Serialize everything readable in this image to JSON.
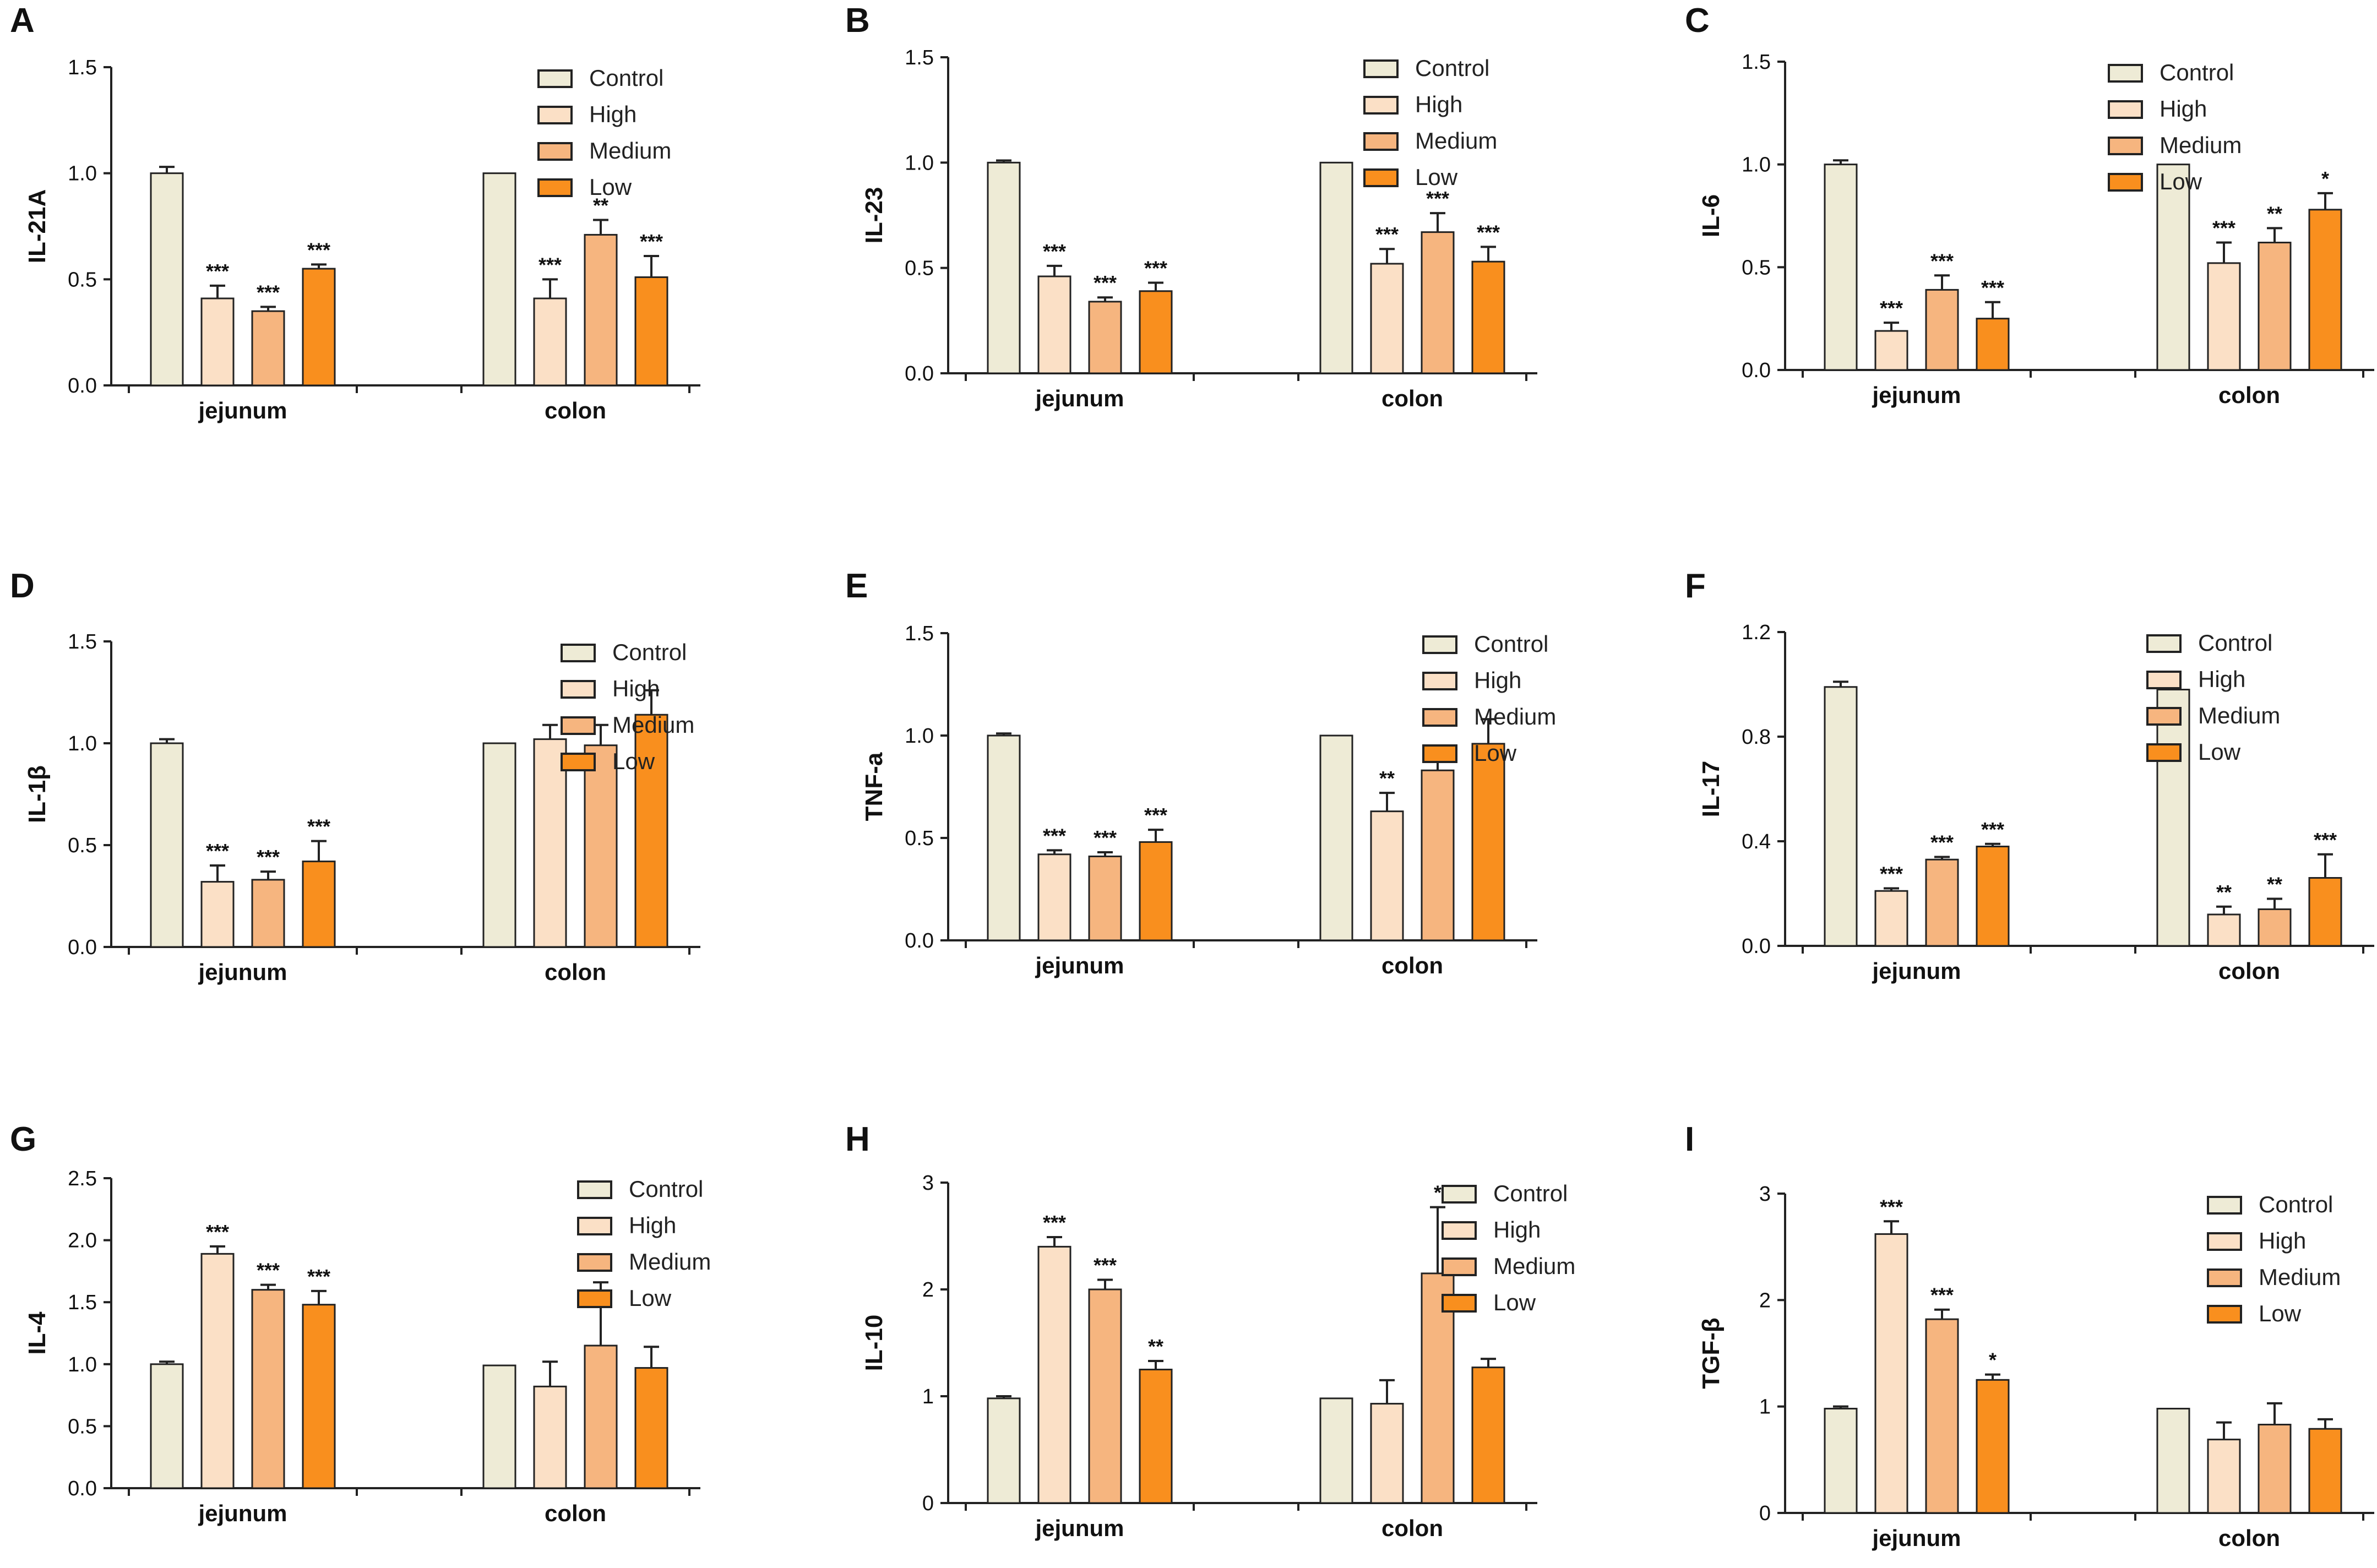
{
  "figure": {
    "legend_labels": [
      "Control",
      "High",
      "Medium",
      "Low"
    ],
    "group_colors": [
      "#eeebd6",
      "#fbe0c6",
      "#f6b57f",
      "#f98f1e"
    ],
    "outline_color": "#222222"
  },
  "chart_data": [
    {
      "panel": "A",
      "type": "bar",
      "ylabel": "IL-21A",
      "categories": [
        "jejunum",
        "colon"
      ],
      "ylim": [
        0,
        1.5
      ],
      "yticks": [
        "0.0",
        "0.5",
        "1.0",
        "1.5"
      ],
      "yticks_values": [
        0,
        0.5,
        1.0,
        1.5
      ],
      "series": [
        {
          "name": "Control",
          "values": [
            1.0,
            1.0
          ],
          "errors": [
            0.03,
            0
          ],
          "sig": [
            "",
            ""
          ]
        },
        {
          "name": "High",
          "values": [
            0.41,
            0.41
          ],
          "errors": [
            0.06,
            0.09
          ],
          "sig": [
            "***",
            "***"
          ]
        },
        {
          "name": "Medium",
          "values": [
            0.35,
            0.71
          ],
          "errors": [
            0.02,
            0.07
          ],
          "sig": [
            "***",
            "**"
          ]
        },
        {
          "name": "Low",
          "values": [
            0.55,
            0.51
          ],
          "errors": [
            0.02,
            0.1
          ],
          "sig": [
            "***",
            "***"
          ]
        }
      ]
    },
    {
      "panel": "B",
      "type": "bar",
      "ylabel": "IL-23",
      "categories": [
        "jejunum",
        "colon"
      ],
      "ylim": [
        0,
        1.5
      ],
      "yticks": [
        "0.0",
        "0.5",
        "1.0",
        "1.5"
      ],
      "yticks_values": [
        0,
        0.5,
        1.0,
        1.5
      ],
      "series": [
        {
          "name": "Control",
          "values": [
            1.0,
            1.0
          ],
          "errors": [
            0.01,
            0
          ],
          "sig": [
            "",
            ""
          ]
        },
        {
          "name": "High",
          "values": [
            0.46,
            0.52
          ],
          "errors": [
            0.05,
            0.07
          ],
          "sig": [
            "***",
            "***"
          ]
        },
        {
          "name": "Medium",
          "values": [
            0.34,
            0.67
          ],
          "errors": [
            0.02,
            0.09
          ],
          "sig": [
            "***",
            "***"
          ]
        },
        {
          "name": "Low",
          "values": [
            0.39,
            0.53
          ],
          "errors": [
            0.04,
            0.07
          ],
          "sig": [
            "***",
            "***"
          ]
        }
      ]
    },
    {
      "panel": "C",
      "type": "bar",
      "ylabel": "IL-6",
      "categories": [
        "jejunum",
        "colon"
      ],
      "ylim": [
        0,
        1.5
      ],
      "yticks": [
        "0.0",
        "0.5",
        "1.0",
        "1.5"
      ],
      "yticks_values": [
        0,
        0.5,
        1.0,
        1.5
      ],
      "series": [
        {
          "name": "Control",
          "values": [
            1.0,
            1.0
          ],
          "errors": [
            0.02,
            0
          ],
          "sig": [
            "",
            ""
          ]
        },
        {
          "name": "High",
          "values": [
            0.19,
            0.52
          ],
          "errors": [
            0.04,
            0.1
          ],
          "sig": [
            "***",
            "***"
          ]
        },
        {
          "name": "Medium",
          "values": [
            0.39,
            0.62
          ],
          "errors": [
            0.07,
            0.07
          ],
          "sig": [
            "***",
            "**"
          ]
        },
        {
          "name": "Low",
          "values": [
            0.25,
            0.78
          ],
          "errors": [
            0.08,
            0.08
          ],
          "sig": [
            "***",
            "*"
          ]
        }
      ]
    },
    {
      "panel": "D",
      "type": "bar",
      "ylabel": "IL-1β",
      "categories": [
        "jejunum",
        "colon"
      ],
      "ylim": [
        0,
        1.5
      ],
      "yticks": [
        "0.0",
        "0.5",
        "1.0",
        "1.5"
      ],
      "yticks_values": [
        0,
        0.5,
        1.0,
        1.5
      ],
      "series": [
        {
          "name": "Control",
          "values": [
            1.0,
            1.0
          ],
          "errors": [
            0.02,
            0
          ],
          "sig": [
            "",
            ""
          ]
        },
        {
          "name": "High",
          "values": [
            0.32,
            1.02
          ],
          "errors": [
            0.08,
            0.07
          ],
          "sig": [
            "***",
            ""
          ]
        },
        {
          "name": "Medium",
          "values": [
            0.33,
            0.99
          ],
          "errors": [
            0.04,
            0.1
          ],
          "sig": [
            "***",
            ""
          ]
        },
        {
          "name": "Low",
          "values": [
            0.42,
            1.14
          ],
          "errors": [
            0.1,
            0.12
          ],
          "sig": [
            "***",
            ""
          ]
        }
      ]
    },
    {
      "panel": "E",
      "type": "bar",
      "ylabel": "TNF-a",
      "categories": [
        "jejunum",
        "colon"
      ],
      "ylim": [
        0,
        1.5
      ],
      "yticks": [
        "0.0",
        "0.5",
        "1.0",
        "1.5"
      ],
      "yticks_values": [
        0,
        0.5,
        1.0,
        1.5
      ],
      "series": [
        {
          "name": "Control",
          "values": [
            1.0,
            1.0
          ],
          "errors": [
            0.01,
            0
          ],
          "sig": [
            "",
            ""
          ]
        },
        {
          "name": "High",
          "values": [
            0.42,
            0.63
          ],
          "errors": [
            0.02,
            0.09
          ],
          "sig": [
            "***",
            "**"
          ]
        },
        {
          "name": "Medium",
          "values": [
            0.41,
            0.83
          ],
          "errors": [
            0.02,
            0.07
          ],
          "sig": [
            "***",
            ""
          ]
        },
        {
          "name": "Low",
          "values": [
            0.48,
            0.96
          ],
          "errors": [
            0.06,
            0.12
          ],
          "sig": [
            "***",
            ""
          ]
        }
      ]
    },
    {
      "panel": "F",
      "type": "bar",
      "ylabel": "IL-17",
      "categories": [
        "jejunum",
        "colon"
      ],
      "ylim": [
        0,
        1.2
      ],
      "yticks": [
        "0.0",
        "0.4",
        "0.8",
        "1.2"
      ],
      "yticks_values": [
        0,
        0.4,
        0.8,
        1.2
      ],
      "series": [
        {
          "name": "Control",
          "values": [
            0.99,
            0.98
          ],
          "errors": [
            0.02,
            0.01
          ],
          "sig": [
            "",
            ""
          ]
        },
        {
          "name": "High",
          "values": [
            0.21,
            0.12
          ],
          "errors": [
            0.01,
            0.03
          ],
          "sig": [
            "***",
            "**"
          ]
        },
        {
          "name": "Medium",
          "values": [
            0.33,
            0.14
          ],
          "errors": [
            0.01,
            0.04
          ],
          "sig": [
            "***",
            "**"
          ]
        },
        {
          "name": "Low",
          "values": [
            0.38,
            0.26
          ],
          "errors": [
            0.01,
            0.09
          ],
          "sig": [
            "***",
            "***"
          ]
        }
      ]
    },
    {
      "panel": "G",
      "type": "bar",
      "ylabel": "IL-4",
      "categories": [
        "jejunum",
        "colon"
      ],
      "ylim": [
        0,
        2.5
      ],
      "yticks": [
        "0.0",
        "0.5",
        "1.0",
        "1.5",
        "2.0",
        "2.5"
      ],
      "yticks_values": [
        0,
        0.5,
        1.0,
        1.5,
        2.0,
        2.5
      ],
      "series": [
        {
          "name": "Control",
          "values": [
            1.0,
            0.99
          ],
          "errors": [
            0.02,
            0
          ],
          "sig": [
            "",
            ""
          ]
        },
        {
          "name": "High",
          "values": [
            1.89,
            0.82
          ],
          "errors": [
            0.06,
            0.2
          ],
          "sig": [
            "***",
            ""
          ]
        },
        {
          "name": "Medium",
          "values": [
            1.6,
            1.15
          ],
          "errors": [
            0.04,
            0.51
          ],
          "sig": [
            "***",
            ""
          ]
        },
        {
          "name": "Low",
          "values": [
            1.48,
            0.97
          ],
          "errors": [
            0.11,
            0.17
          ],
          "sig": [
            "***",
            ""
          ]
        }
      ]
    },
    {
      "panel": "H",
      "type": "bar",
      "ylabel": "IL-10",
      "categories": [
        "jejunum",
        "colon"
      ],
      "ylim": [
        0,
        3
      ],
      "yticks": [
        "0",
        "1",
        "2",
        "3"
      ],
      "yticks_values": [
        0,
        1,
        2,
        3
      ],
      "series": [
        {
          "name": "Control",
          "values": [
            0.98,
            0.98
          ],
          "errors": [
            0.02,
            0
          ],
          "sig": [
            "",
            ""
          ]
        },
        {
          "name": "High",
          "values": [
            2.4,
            0.93
          ],
          "errors": [
            0.09,
            0.22
          ],
          "sig": [
            "***",
            ""
          ]
        },
        {
          "name": "Medium",
          "values": [
            2.0,
            2.15
          ],
          "errors": [
            0.09,
            0.62
          ],
          "sig": [
            "***",
            "*"
          ]
        },
        {
          "name": "Low",
          "values": [
            1.25,
            1.27
          ],
          "errors": [
            0.08,
            0.08
          ],
          "sig": [
            "**",
            ""
          ]
        }
      ]
    },
    {
      "panel": "I",
      "type": "bar",
      "ylabel": "TGF-β",
      "categories": [
        "jejunum",
        "colon"
      ],
      "ylim": [
        0,
        3
      ],
      "yticks": [
        "0",
        "1",
        "2",
        "3"
      ],
      "yticks_values": [
        0,
        1,
        2,
        3
      ],
      "series": [
        {
          "name": "Control",
          "values": [
            0.98,
            0.98
          ],
          "errors": [
            0.02,
            0
          ],
          "sig": [
            "",
            ""
          ]
        },
        {
          "name": "High",
          "values": [
            2.62,
            0.69
          ],
          "errors": [
            0.12,
            0.16
          ],
          "sig": [
            "***",
            ""
          ]
        },
        {
          "name": "Medium",
          "values": [
            1.82,
            0.83
          ],
          "errors": [
            0.09,
            0.2
          ],
          "sig": [
            "***",
            ""
          ]
        },
        {
          "name": "Low",
          "values": [
            1.25,
            0.79
          ],
          "errors": [
            0.05,
            0.09
          ],
          "sig": [
            "*",
            ""
          ]
        }
      ]
    }
  ]
}
